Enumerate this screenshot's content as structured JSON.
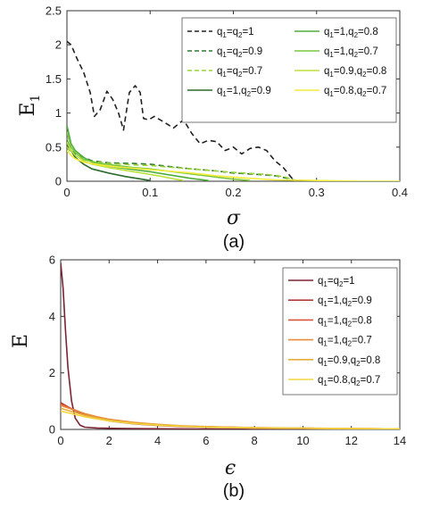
{
  "chart_data": [
    {
      "type": "line",
      "caption": "(a)",
      "xlabel": "σ",
      "ylabel": "E",
      "ylabel_sub": "1",
      "xlim": [
        0,
        0.4
      ],
      "ylim": [
        0,
        2.5
      ],
      "xticks": [
        "0",
        "0.1",
        "0.2",
        "0.3",
        "0.4"
      ],
      "yticks": [
        "0",
        "0.5",
        "1",
        "1.5",
        "2",
        "2.5"
      ],
      "legend_placement": "top-right",
      "legend_columns": 2,
      "series": [
        {
          "name": "q1=q2=1",
          "label_parts": [
            "q",
            "1",
            "=q",
            "2",
            "=1"
          ],
          "color": "#222222",
          "dash": "dashed",
          "x": [
            0,
            0.005,
            0.012,
            0.02,
            0.028,
            0.033,
            0.04,
            0.048,
            0.055,
            0.062,
            0.068,
            0.075,
            0.082,
            0.088,
            0.092,
            0.098,
            0.105,
            0.115,
            0.128,
            0.14,
            0.15,
            0.16,
            0.17,
            0.18,
            0.19,
            0.2,
            0.21,
            0.22,
            0.23,
            0.24,
            0.25,
            0.26,
            0.27,
            0.275
          ],
          "y": [
            2.05,
            2.0,
            1.8,
            1.6,
            1.3,
            0.95,
            1.05,
            1.32,
            1.2,
            1.0,
            0.75,
            1.3,
            1.4,
            1.3,
            0.92,
            0.9,
            0.95,
            0.88,
            0.78,
            0.9,
            0.7,
            0.55,
            0.6,
            0.58,
            0.45,
            0.5,
            0.4,
            0.48,
            0.5,
            0.45,
            0.3,
            0.2,
            0.05,
            0.02
          ]
        },
        {
          "name": "q1=q2=0.9",
          "label_parts": [
            "q",
            "1",
            "=q",
            "2",
            "=0.9"
          ],
          "color": "#2e7a2c",
          "dash": "dashed",
          "x": [
            0,
            0.005,
            0.01,
            0.02,
            0.03,
            0.05,
            0.08,
            0.1,
            0.12,
            0.15,
            0.18,
            0.2,
            0.23,
            0.25,
            0.27,
            0.275
          ],
          "y": [
            0.55,
            0.45,
            0.4,
            0.35,
            0.3,
            0.27,
            0.26,
            0.25,
            0.22,
            0.18,
            0.15,
            0.12,
            0.1,
            0.08,
            0.03,
            0.01
          ]
        },
        {
          "name": "q1=q2=0.7",
          "label_parts": [
            "q",
            "1",
            "=q",
            "2",
            "=0.7"
          ],
          "color": "#9ad23a",
          "dash": "dashed",
          "x": [
            0,
            0.005,
            0.01,
            0.02,
            0.03,
            0.05,
            0.08,
            0.1,
            0.13,
            0.16,
            0.2,
            0.24,
            0.26,
            0.27,
            0.275
          ],
          "y": [
            0.5,
            0.42,
            0.38,
            0.32,
            0.29,
            0.26,
            0.24,
            0.23,
            0.2,
            0.17,
            0.13,
            0.1,
            0.07,
            0.03,
            0.01
          ]
        },
        {
          "name": "q1=1,q2=0.9",
          "label_parts": [
            "q",
            "1",
            "=1,q",
            "2",
            "=0.9"
          ],
          "color": "#2b6a2a",
          "dash": "solid",
          "x": [
            0,
            0.005,
            0.01,
            0.02,
            0.03,
            0.05,
            0.07,
            0.09,
            0.1
          ],
          "y": [
            0.6,
            0.45,
            0.35,
            0.25,
            0.18,
            0.12,
            0.07,
            0.03,
            0.01
          ]
        },
        {
          "name": "q1=1,q2=0.8",
          "label_parts": [
            "q",
            "1",
            "=1,q",
            "2",
            "=0.8"
          ],
          "color": "#4fae3a",
          "dash": "solid",
          "x": [
            0,
            0.005,
            0.01,
            0.02,
            0.03,
            0.05,
            0.08,
            0.1,
            0.12,
            0.15,
            0.17
          ],
          "y": [
            0.82,
            0.55,
            0.45,
            0.35,
            0.28,
            0.22,
            0.17,
            0.14,
            0.1,
            0.04,
            0.01
          ]
        },
        {
          "name": "q1=1,q2=0.7",
          "label_parts": [
            "q",
            "1",
            "=1,q",
            "2",
            "=0.7"
          ],
          "color": "#7cc740",
          "dash": "solid",
          "x": [
            0,
            0.005,
            0.01,
            0.02,
            0.04,
            0.06,
            0.08,
            0.1,
            0.12,
            0.14,
            0.16,
            0.18,
            0.2,
            0.22
          ],
          "y": [
            0.72,
            0.5,
            0.42,
            0.32,
            0.26,
            0.23,
            0.2,
            0.18,
            0.15,
            0.12,
            0.09,
            0.06,
            0.03,
            0.01
          ]
        },
        {
          "name": "q1=0.9,q2=0.8",
          "label_parts": [
            "q",
            "1",
            "=0.9,q",
            "2",
            "=0.8"
          ],
          "color": "#bde03f",
          "dash": "solid",
          "x": [
            0,
            0.005,
            0.01,
            0.02,
            0.03,
            0.05,
            0.07,
            0.09,
            0.11,
            0.13,
            0.14
          ],
          "y": [
            0.58,
            0.45,
            0.38,
            0.3,
            0.25,
            0.2,
            0.16,
            0.12,
            0.08,
            0.03,
            0.01
          ]
        },
        {
          "name": "q1=0.8,q2=0.7",
          "label_parts": [
            "q",
            "1",
            "=0.8,q",
            "2",
            "=0.7"
          ],
          "color": "#f2ec3a",
          "dash": "solid",
          "x": [
            0,
            0.005,
            0.01,
            0.02,
            0.04,
            0.06,
            0.08,
            0.1,
            0.12,
            0.15,
            0.18,
            0.21,
            0.25,
            0.3,
            0.35,
            0.4
          ],
          "y": [
            0.45,
            0.38,
            0.33,
            0.28,
            0.24,
            0.21,
            0.19,
            0.17,
            0.15,
            0.12,
            0.08,
            0.05,
            0.02,
            0.01,
            0.0,
            0.0
          ]
        }
      ]
    },
    {
      "type": "line",
      "caption": "(b)",
      "xlabel": "ϵ",
      "ylabel": "E",
      "ylabel_sub": "",
      "xlim": [
        0,
        14
      ],
      "ylim": [
        0,
        6
      ],
      "xticks": [
        "0",
        "2",
        "4",
        "6",
        "8",
        "10",
        "12",
        "14"
      ],
      "yticks": [
        "0",
        "2",
        "4",
        "6"
      ],
      "legend_placement": "top-right",
      "legend_columns": 1,
      "series": [
        {
          "name": "q1=q2=1",
          "label_parts": [
            "q",
            "1",
            "=q",
            "2",
            "=1"
          ],
          "color": "#7a2334",
          "dash": "solid",
          "x": [
            0,
            0.1,
            0.2,
            0.3,
            0.45,
            0.6,
            0.8,
            1.0,
            1.5,
            2,
            3,
            5,
            8,
            14
          ],
          "y": [
            5.9,
            5.0,
            3.5,
            2.2,
            1.0,
            0.4,
            0.15,
            0.08,
            0.05,
            0.04,
            0.03,
            0.02,
            0.01,
            0.01
          ]
        },
        {
          "name": "q1=1,q2=0.9",
          "label_parts": [
            "q",
            "1",
            "=1,q",
            "2",
            "=0.9"
          ],
          "color": "#b43a3a",
          "dash": "solid",
          "x": [
            0,
            0.5,
            1,
            1.5,
            2,
            3,
            4,
            5,
            6,
            8,
            10,
            12,
            14
          ],
          "y": [
            0.95,
            0.7,
            0.5,
            0.38,
            0.3,
            0.2,
            0.14,
            0.1,
            0.08,
            0.05,
            0.04,
            0.03,
            0.02
          ]
        },
        {
          "name": "q1=1,q2=0.8",
          "label_parts": [
            "q",
            "1",
            "=1,q",
            "2",
            "=0.8"
          ],
          "color": "#d9543a",
          "dash": "solid",
          "x": [
            0,
            0.5,
            1,
            1.5,
            2,
            3,
            4,
            5,
            6,
            8,
            10,
            12,
            14
          ],
          "y": [
            0.9,
            0.72,
            0.55,
            0.42,
            0.34,
            0.23,
            0.16,
            0.12,
            0.09,
            0.06,
            0.04,
            0.03,
            0.02
          ]
        },
        {
          "name": "q1=1,q2=0.7",
          "label_parts": [
            "q",
            "1",
            "=1,q",
            "2",
            "=0.7"
          ],
          "color": "#e88a3a",
          "dash": "solid",
          "x": [
            0,
            0.5,
            1,
            1.5,
            2,
            3,
            4,
            5,
            6,
            8,
            10,
            12,
            14
          ],
          "y": [
            0.85,
            0.7,
            0.56,
            0.45,
            0.36,
            0.25,
            0.18,
            0.13,
            0.1,
            0.06,
            0.05,
            0.03,
            0.02
          ]
        },
        {
          "name": "q1=0.9,q2=0.8",
          "label_parts": [
            "q",
            "1",
            "=0.9,q",
            "2",
            "=0.8"
          ],
          "color": "#e6ad38",
          "dash": "solid",
          "x": [
            0,
            0.5,
            1,
            1.5,
            2,
            3,
            4,
            5,
            6,
            8,
            10,
            12,
            14
          ],
          "y": [
            0.75,
            0.62,
            0.5,
            0.41,
            0.33,
            0.23,
            0.17,
            0.12,
            0.09,
            0.06,
            0.04,
            0.03,
            0.02
          ]
        },
        {
          "name": "q1=0.8,q2=0.7",
          "label_parts": [
            "q",
            "1",
            "=0.8,q",
            "2",
            "=0.7"
          ],
          "color": "#f2d640",
          "dash": "solid",
          "x": [
            0,
            0.5,
            1,
            1.5,
            2,
            3,
            4,
            5,
            6,
            8,
            10,
            12,
            14
          ],
          "y": [
            0.65,
            0.55,
            0.45,
            0.37,
            0.3,
            0.21,
            0.15,
            0.11,
            0.08,
            0.05,
            0.04,
            0.03,
            0.02
          ]
        }
      ]
    }
  ]
}
